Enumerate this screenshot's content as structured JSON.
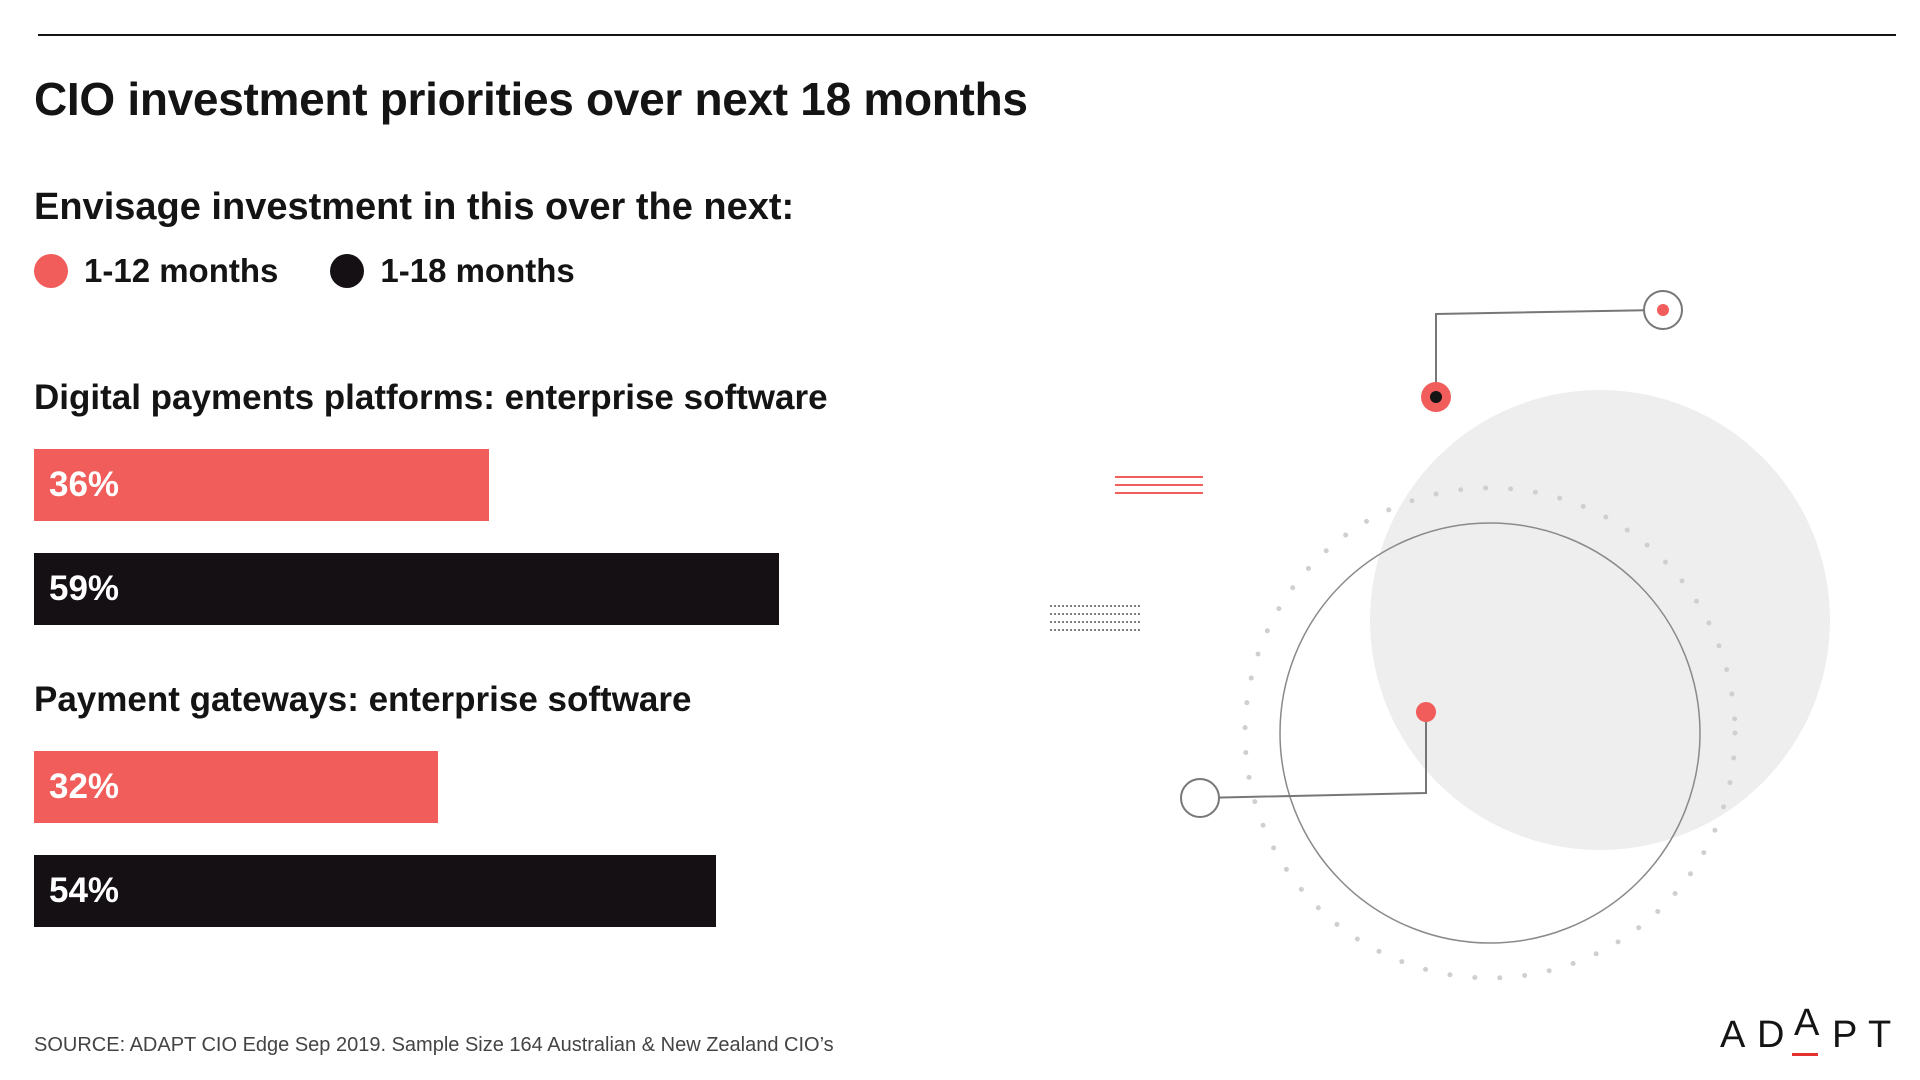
{
  "header": {
    "title": "CIO investment priorities over next 18 months",
    "subtitle": "Envisage investment in this over the next:"
  },
  "legend": [
    {
      "label": "1-12 months",
      "color": "#f05d5a"
    },
    {
      "label": "1-18 months",
      "color": "#141014"
    }
  ],
  "chart_data": {
    "type": "bar",
    "orientation": "horizontal",
    "title": "CIO investment priorities over next 18 months",
    "subtitle": "Envisage investment in this over the next:",
    "categories": [
      "Digital payments platforms: enterprise software",
      "Payment gateways: enterprise software"
    ],
    "series": [
      {
        "name": "1-12 months",
        "values": [
          36,
          32
        ],
        "labels": [
          "36%",
          "32%"
        ],
        "color": "#f05d5a"
      },
      {
        "name": "1-18 months",
        "values": [
          59,
          54
        ],
        "labels": [
          "59%",
          "54%"
        ],
        "color": "#141014"
      }
    ],
    "xlim": [
      0,
      100
    ],
    "grid": false,
    "legend_position": "top-left"
  },
  "footer": {
    "source": "SOURCE: ADAPT CIO Edge Sep 2019. Sample Size 164 Australian & New Zealand CIO’s",
    "logo_letters": [
      "A",
      "D",
      "A",
      "P",
      "T"
    ]
  }
}
